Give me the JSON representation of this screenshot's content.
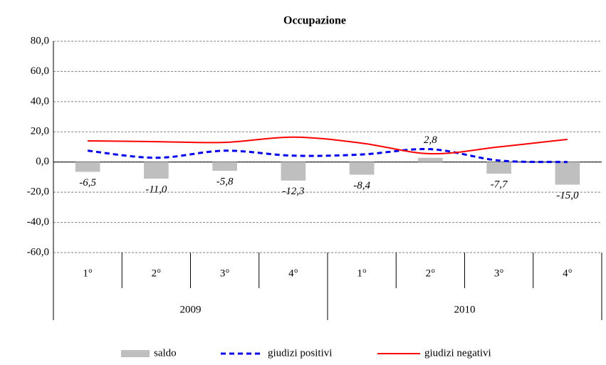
{
  "chart_data": {
    "type": "bar-line",
    "title": "Occupazione",
    "categories": [
      "1°",
      "2°",
      "3°",
      "4°",
      "1°",
      "2°",
      "3°",
      "4°"
    ],
    "category_groups": [
      "2009",
      "2010"
    ],
    "series": [
      {
        "name": "saldo",
        "type": "bar",
        "color": "#bfbfbf",
        "values": [
          -6.5,
          -11.0,
          -5.8,
          -12.3,
          -8.4,
          2.8,
          -7.7,
          -15.0
        ],
        "value_labels": [
          "-6,5",
          "-11,0",
          "-5,8",
          "-12,3",
          "-8,4",
          "2,8",
          "-7,7",
          "-15,0"
        ]
      },
      {
        "name": "giudizi positivi",
        "type": "line",
        "dash": true,
        "color": "#0000ff",
        "values": [
          7.5,
          2.8,
          7.5,
          4.2,
          5.0,
          8.5,
          1.0,
          0.0
        ]
      },
      {
        "name": "giudizi negativi",
        "type": "line",
        "dash": false,
        "color": "#ff0000",
        "values": [
          14.0,
          13.5,
          13.0,
          16.5,
          12.5,
          5.5,
          10.0,
          15.0
        ]
      }
    ],
    "ylim": [
      -60,
      80
    ],
    "yticks": [
      {
        "value": -60,
        "label": "-60,0"
      },
      {
        "value": -40,
        "label": "-40,0"
      },
      {
        "value": -20,
        "label": "-20,0"
      },
      {
        "value": 0,
        "label": "0,0"
      },
      {
        "value": 20,
        "label": "20,0"
      },
      {
        "value": 40,
        "label": "40,0"
      },
      {
        "value": 60,
        "label": "60,0"
      },
      {
        "value": 80,
        "label": "80,0"
      }
    ],
    "grid": true,
    "legend": "bottom"
  }
}
